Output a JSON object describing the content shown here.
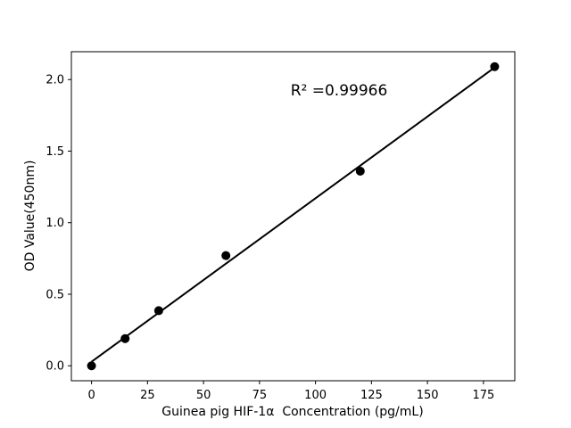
{
  "chart_data": {
    "type": "scatter",
    "title": "",
    "xlabel": "Guinea pig HIF-1α  Concentration (pg/mL)",
    "ylabel": "OD Value(450nm)",
    "annotation": "R² =0.99966",
    "r_squared": 0.99966,
    "x": [
      0,
      15,
      30,
      60,
      120,
      180
    ],
    "y": [
      0.0,
      0.19,
      0.385,
      0.77,
      1.36,
      2.09
    ],
    "fit_line": {
      "x1": 0,
      "y1": 0.028,
      "x2": 180,
      "y2": 2.084
    },
    "xticks": [
      0,
      25,
      50,
      75,
      100,
      125,
      150,
      175
    ],
    "xtick_labels": [
      "0",
      "25",
      "50",
      "75",
      "100",
      "125",
      "150",
      "175"
    ],
    "yticks": [
      0.0,
      0.5,
      1.0,
      1.5,
      2.0
    ],
    "ytick_labels": [
      "0.0",
      "0.5",
      "1.0",
      "1.5",
      "2.0"
    ],
    "xlim": [
      -9,
      189
    ],
    "ylim": [
      -0.1045,
      2.1945
    ],
    "grid": false,
    "legend_position": "none",
    "marker_color": "#000000",
    "line_color": "#000000",
    "background_color": "#ffffff",
    "axis_color": "#000000"
  }
}
